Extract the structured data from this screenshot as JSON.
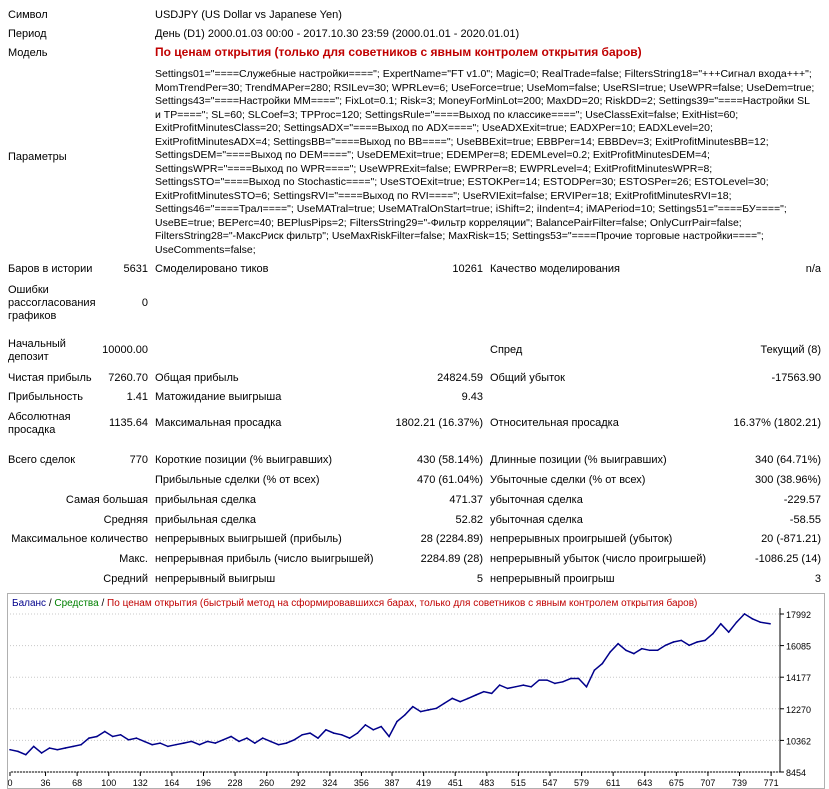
{
  "header": {
    "symbol_label": "Символ",
    "symbol_value": "USDJPY (US Dollar vs Japanese Yen)",
    "period_label": "Период",
    "period_value": "День (D1) 2000.01.03 00:00 - 2017.10.30 23:59 (2000.01.01 - 2020.01.01)",
    "model_label": "Модель",
    "model_value": "По ценам открытия (только для советников с явным контролем открытия баров)",
    "params_label": "Параметры",
    "params_value": "Settings01=\"====Служебные настройки====\"; ExpertName=\"FT v1.0\"; Magic=0; RealTrade=false; FiltersString18=\"+++Сигнал входа+++\"; MomTrendPer=30; TrendMAPer=280; RSILev=30; WPRLev=6; UseForce=true; UseMom=false; UseRSI=true; UseWPR=false; UseDem=true; Settings43=\"====Настройки ММ====\"; FixLot=0.1; Risk=3; MoneyForMinLot=200; MaxDD=20; RiskDD=2; Settings39=\"====Настройки SL и TP====\"; SL=60; SLCoef=3; TPProc=120; SettingsRule=\"====Выход по классике====\"; UseClassExit=false; ExitHist=60; ExitProfitMinutesClass=20; SettingsADX=\"====Выход по ADX====\"; UseADXExit=true; EADXPer=10; EADXLevel=20; ExitProfitMinutesADX=4; SettingsBB=\"====Выход по BB====\"; UseBBExit=true; EBBPer=14; EBBDev=3; ExitProfitMinutesBB=12; SettingsDEM=\"====Выход по DEM====\"; UseDEMExit=true; EDEMPer=8; EDEMLevel=0.2; ExitProfitMinutesDEM=4; SettingsWPR=\"====Выход по WPR====\"; UseWPRExit=false; EWPRPer=8; EWPRLevel=4; ExitProfitMinutesWPR=8; SettingsSTO=\"====Выход по Stochastic====\"; UseSTOExit=true; ESTOKPer=14; ESTODPer=30; ESTOSPer=26; ESTOLevel=30; ExitProfitMinutesSTO=6; SettingsRVI=\"====Выход по RVI====\"; UseRVIExit=false; ERVIPer=18; ExitProfitMinutesRVI=18; Settings46=\"====Трал====\"; UseMATral=true; UseMATralOnStart=true; iShift=2; iIndent=4; iMAPeriod=10; Settings51=\"====БУ====\"; UseBE=true; BEPerc=40; BEPlusPips=2; FiltersString29=\"-Фильтр корреляции\"; BalancePairFilter=false; OnlyCurrPair=false; FiltersString28=\"-МаксРиск фильтр\"; UseMaxRiskFilter=false; MaxRisk=15; Settings53=\"====Прочие торговые настройки====\"; UseComments=false;"
  },
  "stats": {
    "bars_label": "Баров в истории",
    "bars_value": "5631",
    "ticks_label": "Смоделировано тиков",
    "ticks_value": "10261",
    "quality_label": "Качество моделирования",
    "quality_value": "n/a",
    "mismatch_label": "Ошибки рассогласования графиков",
    "mismatch_value": "0",
    "deposit_label": "Начальный депозит",
    "deposit_value": "10000.00",
    "spread_label": "Спред",
    "spread_value": "Текущий (8)",
    "netprofit_label": "Чистая прибыль",
    "netprofit_value": "7260.70",
    "grossprofit_label": "Общая прибыль",
    "grossprofit_value": "24824.59",
    "grossloss_label": "Общий убыток",
    "grossloss_value": "-17563.90",
    "pf_label": "Прибыльность",
    "pf_value": "1.41",
    "expected_label": "Матожидание выигрыша",
    "expected_value": "9.43",
    "absdd_label": "Абсолютная просадка",
    "absdd_value": "1135.64",
    "maxdd_label": "Максимальная просадка",
    "maxdd_value": "1802.21 (16.37%)",
    "reldd_label": "Относительная просадка",
    "reldd_value": "16.37% (1802.21)",
    "trades_label": "Всего сделок",
    "trades_value": "770",
    "short_label": "Короткие позиции (% выигравших)",
    "short_value": "430 (58.14%)",
    "long_label": "Длинные позиции (% выигравших)",
    "long_value": "340 (64.71%)",
    "profit_trades_label": "Прибыльные сделки (% от всех)",
    "profit_trades_value": "470 (61.04%)",
    "loss_trades_label": "Убыточные сделки (% от всех)",
    "loss_trades_value": "300 (38.96%)",
    "largest_label": "Самая большая",
    "largest_profit_label": "прибыльная сделка",
    "largest_profit_value": "471.37",
    "largest_loss_label": "убыточная сделка",
    "largest_loss_value": "-229.57",
    "average_label": "Средняя",
    "average_profit_label": "прибыльная сделка",
    "average_profit_value": "52.82",
    "average_loss_label": "убыточная сделка",
    "average_loss_value": "-58.55",
    "maxcount_label": "Максимальное количество",
    "maxcount_wins_label": "непрерывных выигрышей (прибыль)",
    "maxcount_wins_value": "28 (2284.89)",
    "maxcount_losses_label": "непрерывных проигрышей (убыток)",
    "maxcount_losses_value": "20 (-871.21)",
    "max_label": "Макс.",
    "max_profit_label": "непрерывная прибыль (число выигрышей)",
    "max_profit_value": "2284.89 (28)",
    "max_loss_label": "непрерывный убыток (число проигрышей)",
    "max_loss_value": "-1086.25 (14)",
    "avg_label": "Средний",
    "avg_win_label": "непрерывный выигрыш",
    "avg_win_value": "5",
    "avg_loss_label": "непрерывный проигрыш",
    "avg_loss_value": "3"
  },
  "chart_legend": {
    "balance": "Баланс",
    "sep1": " / ",
    "equity": "Средства",
    "sep2": " / ",
    "model": "По ценам открытия (быстрый метод на сформировавшихся барах, только для советников с явным контролем открытия баров)"
  },
  "colors": {
    "balance": "#00008b",
    "equity": "#008000",
    "model": "#c00000",
    "grid": "#c8c8c8"
  },
  "chart_data": {
    "type": "line",
    "xlim": [
      0,
      780
    ],
    "ylim": [
      8454,
      17992
    ],
    "x_ticks": [
      "0",
      "36",
      "68",
      "100",
      "132",
      "164",
      "196",
      "228",
      "260",
      "292",
      "324",
      "356",
      "387",
      "419",
      "451",
      "483",
      "515",
      "547",
      "579",
      "611",
      "643",
      "675",
      "707",
      "739",
      "771"
    ],
    "y_ticks": [
      "17992",
      "16085",
      "14177",
      "12270",
      "10362",
      "8454"
    ],
    "series": [
      {
        "name": "Баланс",
        "x": [
          0,
          8,
          16,
          24,
          32,
          40,
          48,
          56,
          64,
          72,
          80,
          88,
          96,
          104,
          112,
          120,
          128,
          136,
          144,
          152,
          160,
          168,
          176,
          184,
          192,
          200,
          208,
          216,
          224,
          232,
          240,
          248,
          256,
          264,
          272,
          280,
          288,
          296,
          304,
          312,
          320,
          328,
          336,
          344,
          352,
          360,
          368,
          376,
          384,
          392,
          400,
          408,
          416,
          424,
          432,
          440,
          448,
          456,
          464,
          472,
          480,
          488,
          496,
          504,
          512,
          520,
          528,
          536,
          544,
          552,
          560,
          568,
          576,
          584,
          592,
          600,
          608,
          616,
          624,
          632,
          640,
          648,
          656,
          664,
          672,
          680,
          688,
          696,
          704,
          712,
          720,
          728,
          736,
          744,
          752,
          760,
          770
        ],
        "y": [
          9800,
          9700,
          9500,
          10000,
          9600,
          9900,
          9800,
          9900,
          10000,
          10100,
          10500,
          10600,
          10900,
          10600,
          10700,
          10400,
          10500,
          10300,
          10100,
          10200,
          10000,
          10100,
          10200,
          10300,
          10100,
          10300,
          10200,
          10400,
          10600,
          10300,
          10500,
          10200,
          10500,
          10300,
          10100,
          10200,
          10400,
          10700,
          10800,
          10500,
          11000,
          10800,
          10700,
          10500,
          10800,
          11300,
          11000,
          11200,
          10600,
          11500,
          11900,
          12400,
          12100,
          12200,
          12300,
          12600,
          12900,
          12700,
          12900,
          13100,
          13300,
          13200,
          13700,
          13500,
          13600,
          13700,
          13600,
          14000,
          14000,
          13800,
          13900,
          14100,
          14100,
          13600,
          14600,
          15000,
          15700,
          16200,
          15800,
          15600,
          15900,
          15800,
          15800,
          16100,
          16300,
          16400,
          16100,
          16300,
          16400,
          16800,
          17400,
          16900,
          17500,
          18000,
          17700,
          17500,
          17400
        ]
      }
    ]
  }
}
